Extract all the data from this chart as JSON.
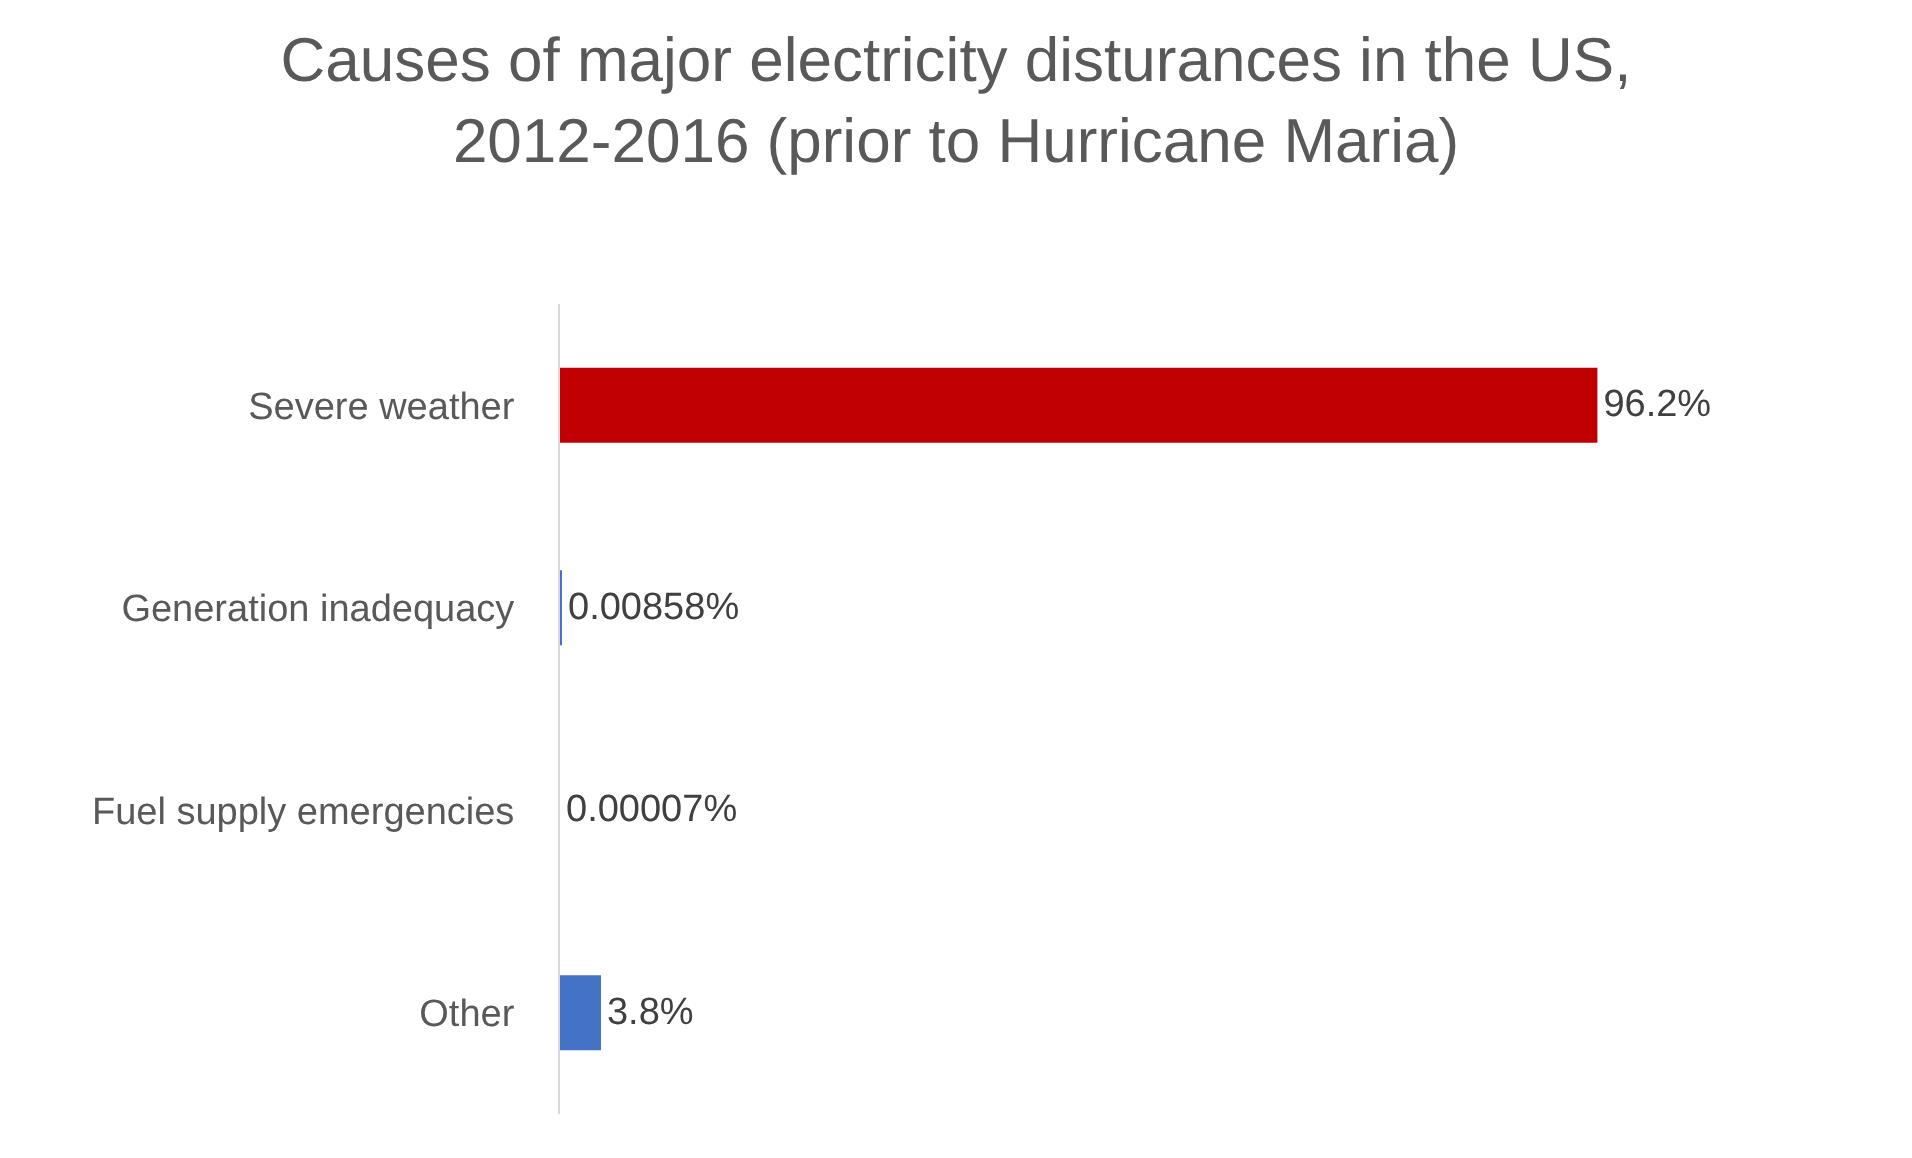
{
  "chart_data": {
    "type": "bar",
    "orientation": "horizontal",
    "title": "Causes of major electricity disturances in the US, 2012-2016 (prior to Hurricane Maria)",
    "categories": [
      "Severe weather",
      "Generation inadequacy",
      "Fuel supply emergencies",
      "Other"
    ],
    "values": [
      96.2,
      0.00858,
      7e-05,
      3.8
    ],
    "colors": [
      "#c00000",
      "#4472c4",
      "#4472c4",
      "#4472c4"
    ],
    "value_labels": [
      "96.2%",
      "0.00858%",
      "0.00007%",
      "3.8%"
    ],
    "grid": false,
    "legend": false
  }
}
